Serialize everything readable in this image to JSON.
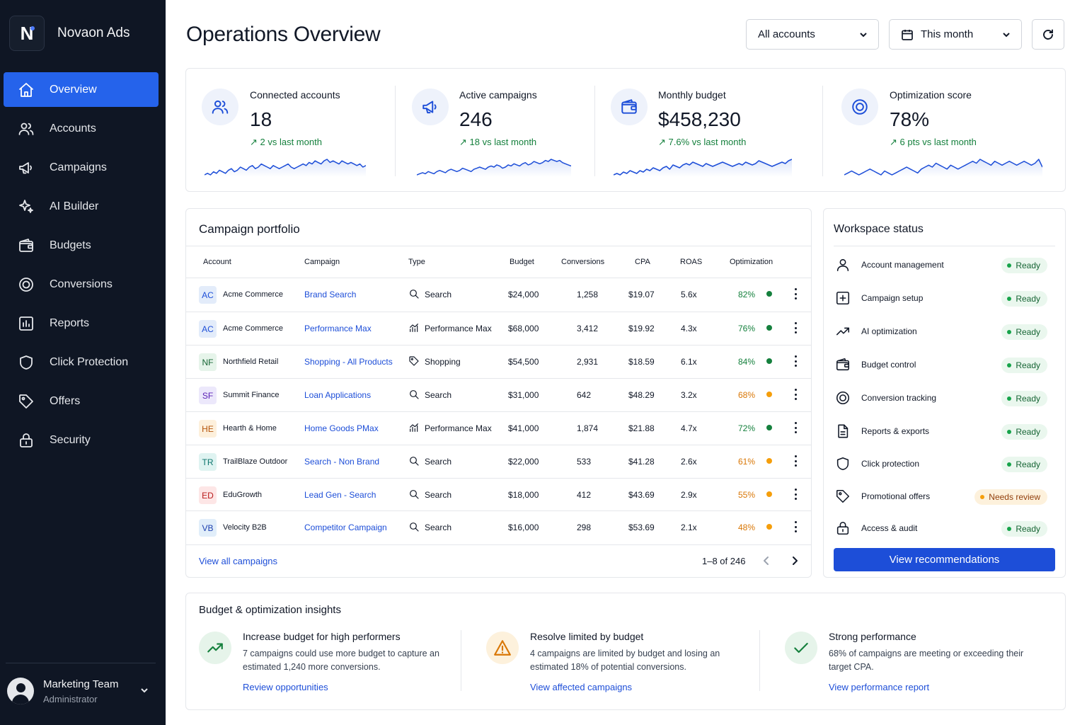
{
  "app": {
    "logo_letter": "N",
    "name": "Novaon Ads"
  },
  "sidebar": {
    "items": [
      {
        "label": "Overview",
        "icon": "home-icon",
        "active": true
      },
      {
        "label": "Accounts",
        "icon": "users-icon"
      },
      {
        "label": "Campaigns",
        "icon": "megaphone-icon"
      },
      {
        "label": "AI Builder",
        "icon": "sparkles-icon"
      },
      {
        "label": "Budgets",
        "icon": "wallet-icon"
      },
      {
        "label": "Conversions",
        "icon": "target-icon"
      },
      {
        "label": "Reports",
        "icon": "chart-icon"
      },
      {
        "label": "Click Protection",
        "icon": "shield-icon"
      },
      {
        "label": "Offers",
        "icon": "tag-icon"
      },
      {
        "label": "Security",
        "icon": "lock-icon"
      }
    ],
    "user": {
      "name": "Marketing Team",
      "role": "Administrator"
    }
  },
  "header": {
    "title": "Operations Overview",
    "account_filter": "All accounts",
    "date_filter": "This month"
  },
  "kpis": [
    {
      "label": "Connected accounts",
      "value": "18",
      "delta": "↗  2 vs last month",
      "icon": "users-icon",
      "trend": [
        5,
        6,
        5,
        7,
        6,
        8,
        7,
        6,
        8,
        9,
        7,
        8,
        10,
        9,
        8,
        10,
        11,
        9,
        10,
        12,
        11,
        10,
        9,
        11,
        10,
        9,
        10,
        11,
        12,
        10,
        9,
        10,
        11,
        12,
        11,
        13,
        12,
        14,
        13,
        12,
        14,
        15,
        13,
        14,
        13,
        12,
        14,
        13,
        12,
        13,
        12,
        11,
        12,
        10,
        11
      ]
    },
    {
      "label": "Active campaigns",
      "value": "246",
      "delta": "↗  18 vs last month",
      "icon": "megaphone-icon",
      "trend": [
        4,
        5,
        6,
        5,
        7,
        6,
        5,
        7,
        8,
        7,
        6,
        8,
        9,
        8,
        7,
        8,
        10,
        9,
        8,
        7,
        9,
        10,
        11,
        10,
        9,
        11,
        12,
        11,
        13,
        12,
        10,
        11,
        13,
        12,
        14,
        13,
        12,
        14,
        15,
        13,
        14,
        16,
        15,
        14,
        15,
        17,
        16,
        18,
        17,
        16,
        17,
        15,
        14,
        13,
        12
      ]
    },
    {
      "label": "Monthly budget",
      "value": "$458,230",
      "delta": "↗  7.6% vs last month",
      "icon": "wallet-icon",
      "trend": [
        5,
        6,
        5,
        7,
        6,
        8,
        7,
        6,
        8,
        7,
        9,
        8,
        10,
        9,
        8,
        10,
        11,
        9,
        12,
        11,
        10,
        12,
        13,
        12,
        14,
        13,
        12,
        11,
        13,
        12,
        11,
        12,
        13,
        14,
        13,
        12,
        11,
        12,
        13,
        12,
        14,
        13,
        12,
        13,
        15,
        14,
        13,
        12,
        11,
        12,
        13,
        14,
        13,
        15,
        16
      ]
    },
    {
      "label": "Optimization score",
      "value": "78%",
      "delta": "↗  6 pts vs last month",
      "icon": "target-icon",
      "trend": [
        6,
        7,
        8,
        7,
        6,
        7,
        8,
        9,
        8,
        7,
        6,
        8,
        7,
        6,
        7,
        8,
        9,
        10,
        9,
        8,
        7,
        9,
        10,
        11,
        10,
        12,
        11,
        10,
        9,
        11,
        10,
        9,
        10,
        11,
        12,
        13,
        12,
        14,
        13,
        12,
        11,
        13,
        12,
        11,
        12,
        13,
        12,
        11,
        12,
        13,
        12,
        11,
        12,
        14,
        10
      ]
    }
  ],
  "portfolio": {
    "title": "Campaign portfolio",
    "columns": [
      "Account",
      "Campaign",
      "Type",
      "Budget",
      "Conversions",
      "CPA",
      "ROAS",
      "Optimization"
    ],
    "rows": [
      {
        "initials": "AC",
        "badge_bg": "#e3ecfa",
        "badge_fg": "#1d4ed8",
        "account": "Acme Commerce",
        "campaign": "Brand Search",
        "type": "Search",
        "type_icon": "search-icon",
        "budget": "$24,000",
        "conversions": "1,258",
        "cpa": "$19.07",
        "roas": "5.6x",
        "opt": "82%",
        "status": "good"
      },
      {
        "initials": "AC",
        "badge_bg": "#e3ecfa",
        "badge_fg": "#1d4ed8",
        "account": "Acme Commerce",
        "campaign": "Performance Max",
        "type": "Performance Max",
        "type_icon": "chart-bar-icon",
        "budget": "$68,000",
        "conversions": "3,412",
        "cpa": "$19.92",
        "roas": "4.3x",
        "opt": "76%",
        "status": "good"
      },
      {
        "initials": "NF",
        "badge_bg": "#e6f4ea",
        "badge_fg": "#166534",
        "account": "Northfield Retail",
        "campaign": "Shopping - All Products",
        "type": "Shopping",
        "type_icon": "tag-icon",
        "budget": "$54,500",
        "conversions": "2,931",
        "cpa": "$18.59",
        "roas": "6.1x",
        "opt": "84%",
        "status": "good"
      },
      {
        "initials": "SF",
        "badge_bg": "#ece8fb",
        "badge_fg": "#5b21b6",
        "account": "Summit Finance",
        "campaign": "Loan Applications",
        "type": "Search",
        "type_icon": "search-icon",
        "budget": "$31,000",
        "conversions": "642",
        "cpa": "$48.29",
        "roas": "3.2x",
        "opt": "68%",
        "status": "warn"
      },
      {
        "initials": "HE",
        "badge_bg": "#fdf0dc",
        "badge_fg": "#b45309",
        "account": "Hearth & Home",
        "campaign": "Home Goods PMax",
        "type": "Performance Max",
        "type_icon": "chart-bar-icon",
        "budget": "$41,000",
        "conversions": "1,874",
        "cpa": "$21.88",
        "roas": "4.7x",
        "opt": "72%",
        "status": "good"
      },
      {
        "initials": "TR",
        "badge_bg": "#dff3f1",
        "badge_fg": "#0f766e",
        "account": "TrailBlaze Outdoor",
        "campaign": "Search - Non Brand",
        "type": "Search",
        "type_icon": "search-icon",
        "budget": "$22,000",
        "conversions": "533",
        "cpa": "$41.28",
        "roas": "2.6x",
        "opt": "61%",
        "status": "warn"
      },
      {
        "initials": "ED",
        "badge_bg": "#fde6e6",
        "badge_fg": "#b91c1c",
        "account": "EduGrowth",
        "campaign": "Lead Gen - Search",
        "type": "Search",
        "type_icon": "search-icon",
        "budget": "$18,000",
        "conversions": "412",
        "cpa": "$43.69",
        "roas": "2.9x",
        "opt": "55%",
        "status": "warn"
      },
      {
        "initials": "VB",
        "badge_bg": "#e1eefa",
        "badge_fg": "#1e40af",
        "account": "Velocity B2B",
        "campaign": "Competitor Campaign",
        "type": "Search",
        "type_icon": "search-icon",
        "budget": "$16,000",
        "conversions": "298",
        "cpa": "$53.69",
        "roas": "2.1x",
        "opt": "48%",
        "status": "warn"
      }
    ],
    "view_all": "View all campaigns",
    "pager": "1–8 of 246"
  },
  "workspace": {
    "title": "Workspace status",
    "items": [
      {
        "label": "Account management",
        "icon": "user-icon",
        "status": "Ready",
        "state": "ready"
      },
      {
        "label": "Campaign setup",
        "icon": "plus-square-icon",
        "status": "Ready",
        "state": "ready"
      },
      {
        "label": "AI optimization",
        "icon": "trend-up-icon",
        "status": "Ready",
        "state": "ready"
      },
      {
        "label": "Budget control",
        "icon": "wallet-icon",
        "status": "Ready",
        "state": "ready"
      },
      {
        "label": "Conversion tracking",
        "icon": "target-icon",
        "status": "Ready",
        "state": "ready"
      },
      {
        "label": "Reports & exports",
        "icon": "document-icon",
        "status": "Ready",
        "state": "ready"
      },
      {
        "label": "Click protection",
        "icon": "shield-icon",
        "status": "Ready",
        "state": "ready"
      },
      {
        "label": "Promotional offers",
        "icon": "tag-icon",
        "status": "Needs review",
        "state": "review"
      },
      {
        "label": "Access & audit",
        "icon": "lock-icon",
        "status": "Ready",
        "state": "ready"
      }
    ],
    "button": "View recommendations"
  },
  "insights": {
    "title": "Budget & optimization insights",
    "items": [
      {
        "heading": "Increase budget for high performers",
        "body": "7 campaigns could use more budget to capture an estimated 1,240 more conversions.",
        "link": "Review opportunities",
        "icon": "trend-up-icon",
        "icon_bg": "#e6f4ea",
        "icon_fg": "#15803d"
      },
      {
        "heading": "Resolve limited by budget",
        "body": "4 campaigns are limited by budget and losing an estimated 18% of potential conversions.",
        "link": "View affected campaigns",
        "icon": "warning-icon",
        "icon_bg": "#fdf1dc",
        "icon_fg": "#d97706"
      },
      {
        "heading": "Strong performance",
        "body": "68% of campaigns are meeting or exceeding their target CPA.",
        "link": "View performance report",
        "icon": "check-icon",
        "icon_bg": "#e6f4ea",
        "icon_fg": "#15803d"
      }
    ]
  },
  "colors": {
    "accent": "#1d4ed8",
    "sidebar_bg": "#0f1624",
    "good": "#15803d",
    "warn": "#d97706"
  }
}
